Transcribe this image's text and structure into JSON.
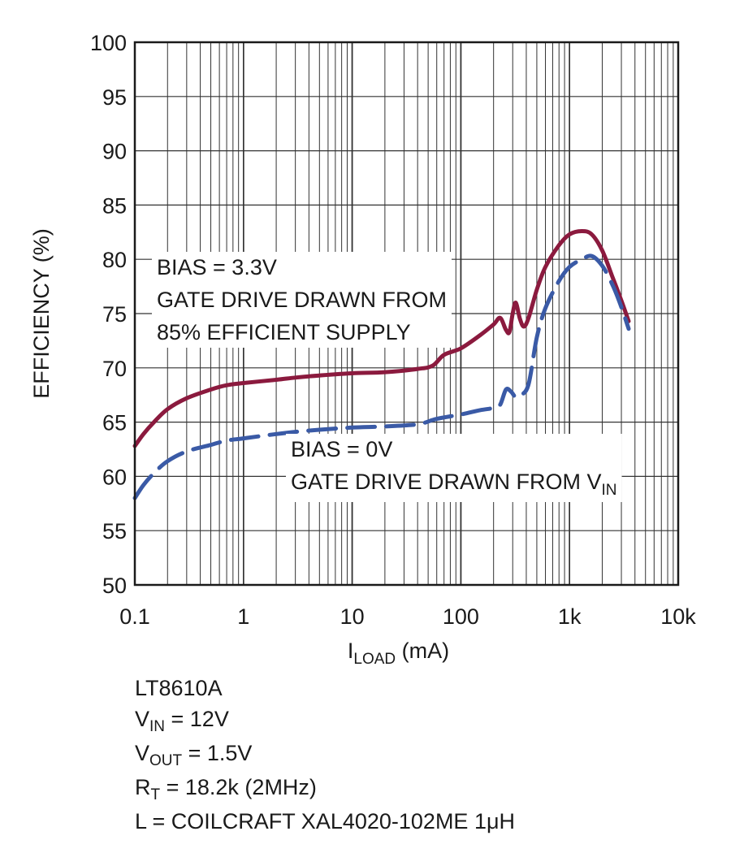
{
  "chart_data": {
    "type": "line",
    "title": "",
    "xlabel": {
      "main": "I",
      "sub": "LOAD",
      "unit": " (mA)"
    },
    "ylabel": "EFFICIENCY (%)",
    "x_scale": "log",
    "xlim": [
      0.1,
      10000
    ],
    "ylim": [
      50,
      100
    ],
    "x_ticks": [
      0.1,
      1,
      10,
      100,
      1000,
      10000
    ],
    "x_tick_labels": [
      "0.1",
      "1",
      "10",
      "100",
      "1k",
      "10k"
    ],
    "y_ticks": [
      50,
      55,
      60,
      65,
      70,
      75,
      80,
      85,
      90,
      95,
      100
    ],
    "grid": true,
    "series": [
      {
        "label_lines": [
          "BIAS = 3.3V",
          "GATE DRIVE DRAWN FROM",
          "85% EFFICIENT SUPPLY"
        ],
        "color": "#8b1a3e",
        "style": "solid",
        "points": [
          [
            0.1,
            62.8
          ],
          [
            0.12,
            63.9
          ],
          [
            0.15,
            65.0
          ],
          [
            0.2,
            66.2
          ],
          [
            0.3,
            67.2
          ],
          [
            0.5,
            68.0
          ],
          [
            0.7,
            68.4
          ],
          [
            1,
            68.6
          ],
          [
            2,
            68.9
          ],
          [
            3,
            69.1
          ],
          [
            5,
            69.3
          ],
          [
            10,
            69.5
          ],
          [
            20,
            69.6
          ],
          [
            40,
            69.9
          ],
          [
            55,
            70.2
          ],
          [
            70,
            71.2
          ],
          [
            100,
            71.8
          ],
          [
            150,
            73.0
          ],
          [
            200,
            74.0
          ],
          [
            230,
            74.6
          ],
          [
            260,
            73.5
          ],
          [
            280,
            73.3
          ],
          [
            300,
            75.0
          ],
          [
            320,
            76.0
          ],
          [
            350,
            74.5
          ],
          [
            380,
            73.8
          ],
          [
            420,
            74.6
          ],
          [
            500,
            77.2
          ],
          [
            600,
            79.3
          ],
          [
            800,
            81.3
          ],
          [
            1000,
            82.3
          ],
          [
            1300,
            82.6
          ],
          [
            1600,
            82.3
          ],
          [
            2000,
            80.8
          ],
          [
            2500,
            78.3
          ],
          [
            3000,
            76.2
          ],
          [
            3500,
            74.3
          ]
        ]
      },
      {
        "label_lines": [
          "BIAS = 0V",
          "GATE DRIVE DRAWN FROM V_IN"
        ],
        "color": "#3a5aa6",
        "style": "dashed",
        "points": [
          [
            0.1,
            58.0
          ],
          [
            0.12,
            59.2
          ],
          [
            0.15,
            60.3
          ],
          [
            0.2,
            61.4
          ],
          [
            0.3,
            62.3
          ],
          [
            0.5,
            62.9
          ],
          [
            0.7,
            63.3
          ],
          [
            1,
            63.5
          ],
          [
            2,
            63.9
          ],
          [
            3,
            64.1
          ],
          [
            5,
            64.3
          ],
          [
            10,
            64.5
          ],
          [
            20,
            64.6
          ],
          [
            40,
            64.8
          ],
          [
            60,
            65.3
          ],
          [
            100,
            65.7
          ],
          [
            150,
            66.1
          ],
          [
            200,
            66.3
          ],
          [
            230,
            66.6
          ],
          [
            260,
            68.0
          ],
          [
            290,
            67.8
          ],
          [
            320,
            67.3
          ],
          [
            360,
            67.5
          ],
          [
            420,
            68.5
          ],
          [
            500,
            72.8
          ],
          [
            600,
            75.5
          ],
          [
            800,
            78.0
          ],
          [
            1000,
            79.3
          ],
          [
            1300,
            80.0
          ],
          [
            1600,
            80.3
          ],
          [
            2000,
            79.4
          ],
          [
            2500,
            77.6
          ],
          [
            3000,
            75.6
          ],
          [
            3500,
            73.6
          ]
        ]
      }
    ]
  },
  "notes": {
    "part": "LT8610A",
    "vin": {
      "main": "V",
      "sub": "IN",
      "rest": " = 12V"
    },
    "vout": {
      "main": "V",
      "sub": "OUT",
      "rest": " = 1.5V"
    },
    "rt": {
      "main": "R",
      "sub": "T",
      "rest": " = 18.2k (2MHz)"
    },
    "inductor": "L = COILCRAFT XAL4020-102ME 1μH"
  }
}
